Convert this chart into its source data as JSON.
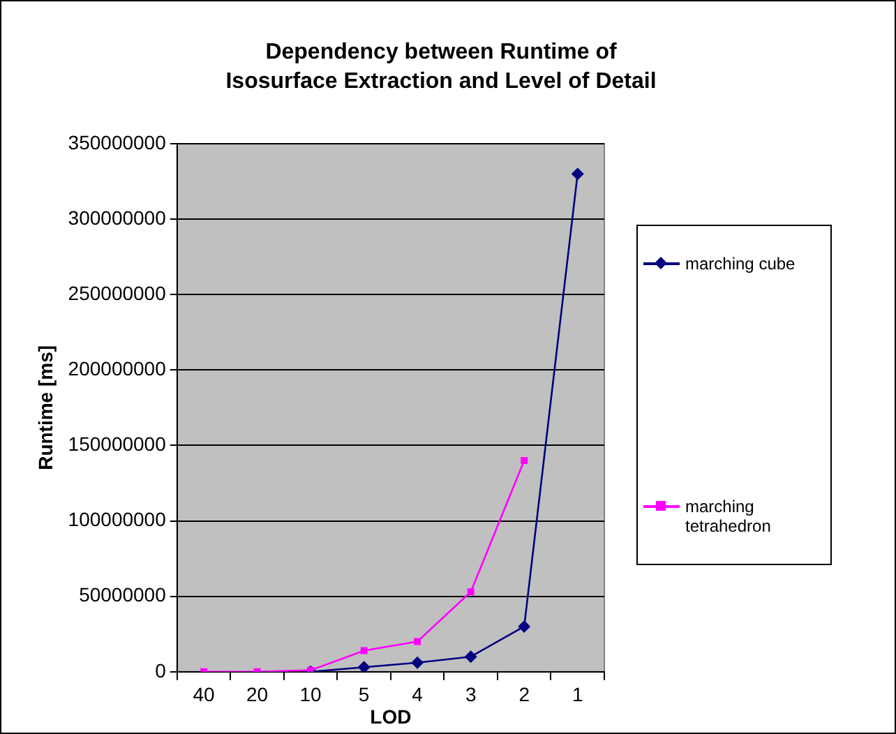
{
  "chart_data": {
    "type": "line",
    "title": "Dependency between Runtime of Isosurface Extraction and Level of Detail",
    "xlabel": "LOD",
    "ylabel": "Runtime [ms]",
    "categories": [
      "40",
      "20",
      "10",
      "5",
      "4",
      "3",
      "2",
      "1"
    ],
    "series": [
      {
        "name": "marching cube",
        "color": "#000080",
        "marker": "diamond",
        "values": [
          null,
          null,
          0,
          3000000,
          6000000,
          10000000,
          30000000,
          330000000
        ]
      },
      {
        "name": "marching tetrahedron",
        "color": "#ff00ff",
        "marker": "square",
        "values": [
          0,
          0,
          1000000,
          14000000,
          20000000,
          53000000,
          140000000,
          null
        ]
      }
    ],
    "ylim": [
      0,
      350000000
    ],
    "yticks": [
      0,
      50000000,
      100000000,
      150000000,
      200000000,
      250000000,
      300000000,
      350000000
    ],
    "grid": "y",
    "legend": "right",
    "line_style": "solid"
  }
}
